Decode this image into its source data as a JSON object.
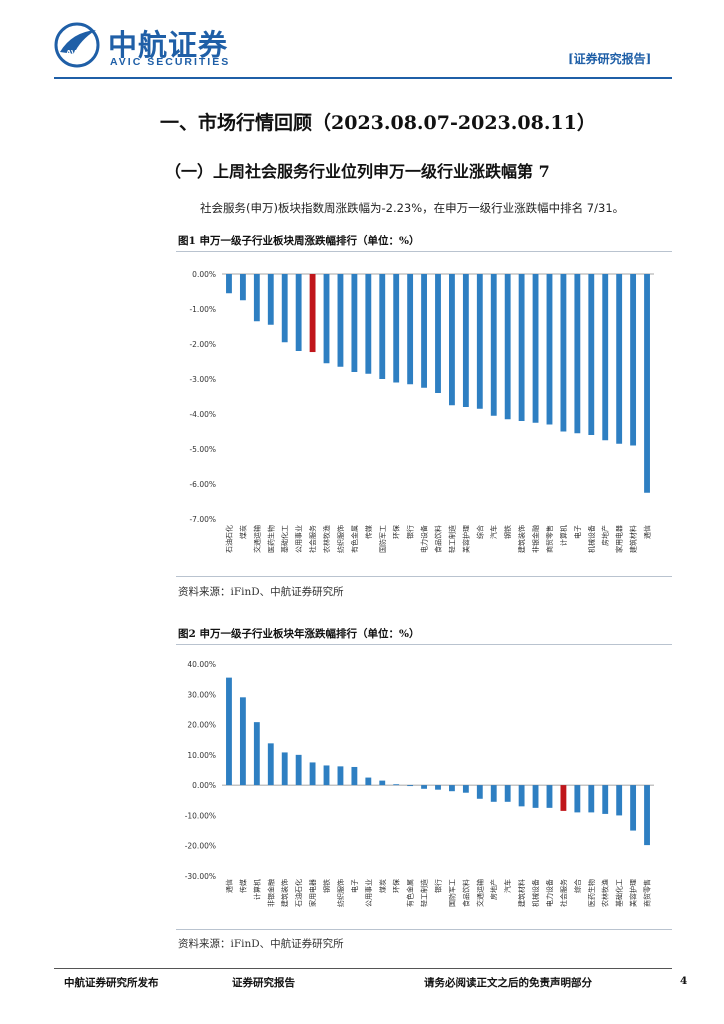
{
  "header": {
    "brand_cn": "中航证券",
    "brand_en": "AVIC SECURITIES",
    "logo_text": "AVIC",
    "report_tag": "[证券研究报告]"
  },
  "section_title": "一、市场行情回顾（2023.08.07-2023.08.11）",
  "subsection_title": "（一）上周社会服务行业位列申万一级行业涨跌幅第 7",
  "body_text": "社会服务(申万)板块指数周涨跌幅为-2.23%，在申万一级行业涨跌幅中排名 7/31。",
  "colors": {
    "bar": "#2e7fc2",
    "highlight": "#c0161b",
    "brand": "#1f5fa7"
  },
  "figures": [
    {
      "title": "图1 申万一级子行业板块周涨跌幅排行（单位：%）",
      "source": "资料来源：iFinD、中航证券研究所"
    },
    {
      "title": "图2 申万一级子行业板块年涨跌幅排行（单位：%）",
      "source": "资料来源：iFinD、中航证券研究所"
    }
  ],
  "chart_data": [
    {
      "type": "bar",
      "highlight_category": "社会服务",
      "categories": [
        "石油石化",
        "煤炭",
        "交通运输",
        "医药生物",
        "基础化工",
        "公用事业",
        "社会服务",
        "农林牧渔",
        "纺织服饰",
        "有色金属",
        "传媒",
        "国防军工",
        "环保",
        "银行",
        "电力设备",
        "食品饮料",
        "轻工制造",
        "美容护理",
        "综合",
        "汽车",
        "钢铁",
        "建筑装饰",
        "非银金融",
        "商贸零售",
        "计算机",
        "电子",
        "机械设备",
        "房地产",
        "家用电器",
        "建筑材料",
        "通信"
      ],
      "values": [
        -0.55,
        -0.75,
        -1.35,
        -1.45,
        -1.95,
        -2.2,
        -2.23,
        -2.55,
        -2.65,
        -2.8,
        -2.85,
        -3.0,
        -3.1,
        -3.15,
        -3.25,
        -3.4,
        -3.75,
        -3.8,
        -3.85,
        -4.05,
        -4.15,
        -4.2,
        -4.25,
        -4.3,
        -4.5,
        -4.55,
        -4.6,
        -4.75,
        -4.85,
        -4.9,
        -6.25
      ],
      "yticks": [
        "0.00%",
        "-1.00%",
        "-2.00%",
        "-3.00%",
        "-4.00%",
        "-5.00%",
        "-6.00%",
        "-7.00%"
      ],
      "ylim": [
        -7,
        0
      ]
    },
    {
      "type": "bar",
      "highlight_category": "社会服务",
      "categories": [
        "通信",
        "传媒",
        "计算机",
        "非银金融",
        "建筑装饰",
        "石油石化",
        "家用电器",
        "钢铁",
        "纺织服饰",
        "电子",
        "公用事业",
        "煤炭",
        "环保",
        "有色金属",
        "轻工制造",
        "银行",
        "国防军工",
        "食品饮料",
        "交通运输",
        "房地产",
        "汽车",
        "建筑材料",
        "机械设备",
        "电力设备",
        "社会服务",
        "综合",
        "医药生物",
        "农林牧渔",
        "基础化工",
        "美容护理",
        "商贸零售"
      ],
      "values": [
        35.5,
        29.0,
        20.8,
        13.8,
        10.8,
        10.0,
        7.5,
        6.5,
        6.2,
        6.0,
        2.5,
        1.5,
        0.3,
        -0.3,
        -1.2,
        -1.5,
        -2.0,
        -2.5,
        -4.5,
        -5.5,
        -5.5,
        -7.0,
        -7.5,
        -7.5,
        -8.5,
        -9.0,
        -9.0,
        -9.5,
        -10.0,
        -15.0,
        -19.8
      ],
      "yticks": [
        "40.00%",
        "30.00%",
        "20.00%",
        "10.00%",
        "0.00%",
        "-10.00%",
        "-20.00%",
        "-30.00%"
      ],
      "ylim": [
        -30,
        40
      ]
    }
  ],
  "footer": {
    "publisher": "中航证券研究所发布",
    "report_type": "证券研究报告",
    "disclaimer": "请务必阅读正文之后的免责声明部分",
    "page_number": "4"
  }
}
